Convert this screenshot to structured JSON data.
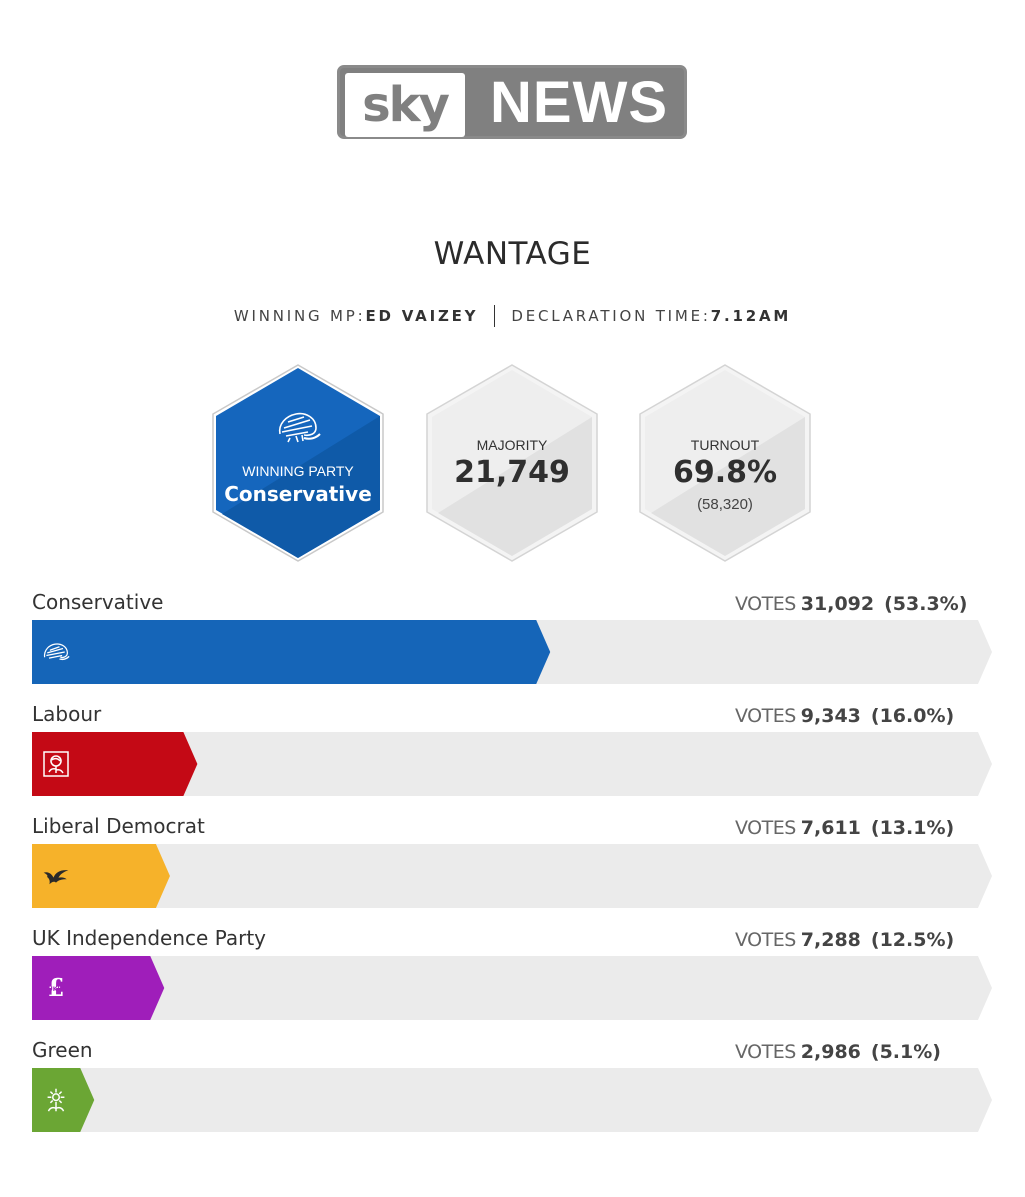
{
  "brand": {
    "sky": "sky",
    "news": "NEWS"
  },
  "constituency": "WANTAGE",
  "winning_mp_label": "WINNING MP:",
  "winning_mp": "ED VAIZEY",
  "declaration_label": "DECLARATION TIME:",
  "declaration_time": "7.12AM",
  "cards": {
    "winning_party_label": "WINNING PARTY",
    "winning_party": "Conservative",
    "majority_label": "MAJORITY",
    "majority": "21,749",
    "turnout_label": "TURNOUT",
    "turnout": "69.8%",
    "turnout_votes": "(58,320)"
  },
  "colors": {
    "Conservative": "#1565b8",
    "Labour": "#c40915",
    "Liberal Democrat": "#f6b22a",
    "UK Independence Party": "#9f1eba",
    "Green": "#6ba634",
    "track": "#ebebeb"
  },
  "chart_data": {
    "type": "bar",
    "categories": [
      "Conservative",
      "Labour",
      "Liberal Democrat",
      "UK Independence Party",
      "Green"
    ],
    "votes": [
      31092,
      9343,
      7611,
      7288,
      2986
    ],
    "vote_labels": [
      "31,092",
      "9,343",
      "7,611",
      "7,288",
      "2,986"
    ],
    "share_labels": [
      "(53.3%)",
      "(16.0%)",
      "(13.1%)",
      "(12.5%)",
      "(5.1%)"
    ],
    "values": [
      53.3,
      16.0,
      13.1,
      12.5,
      5.1
    ],
    "ylim": [
      0,
      100
    ],
    "icons": [
      "tree-icon",
      "rose-icon",
      "dove-icon",
      "pound-icon",
      "sunflower-icon"
    ],
    "votes_label": "VOTES"
  }
}
